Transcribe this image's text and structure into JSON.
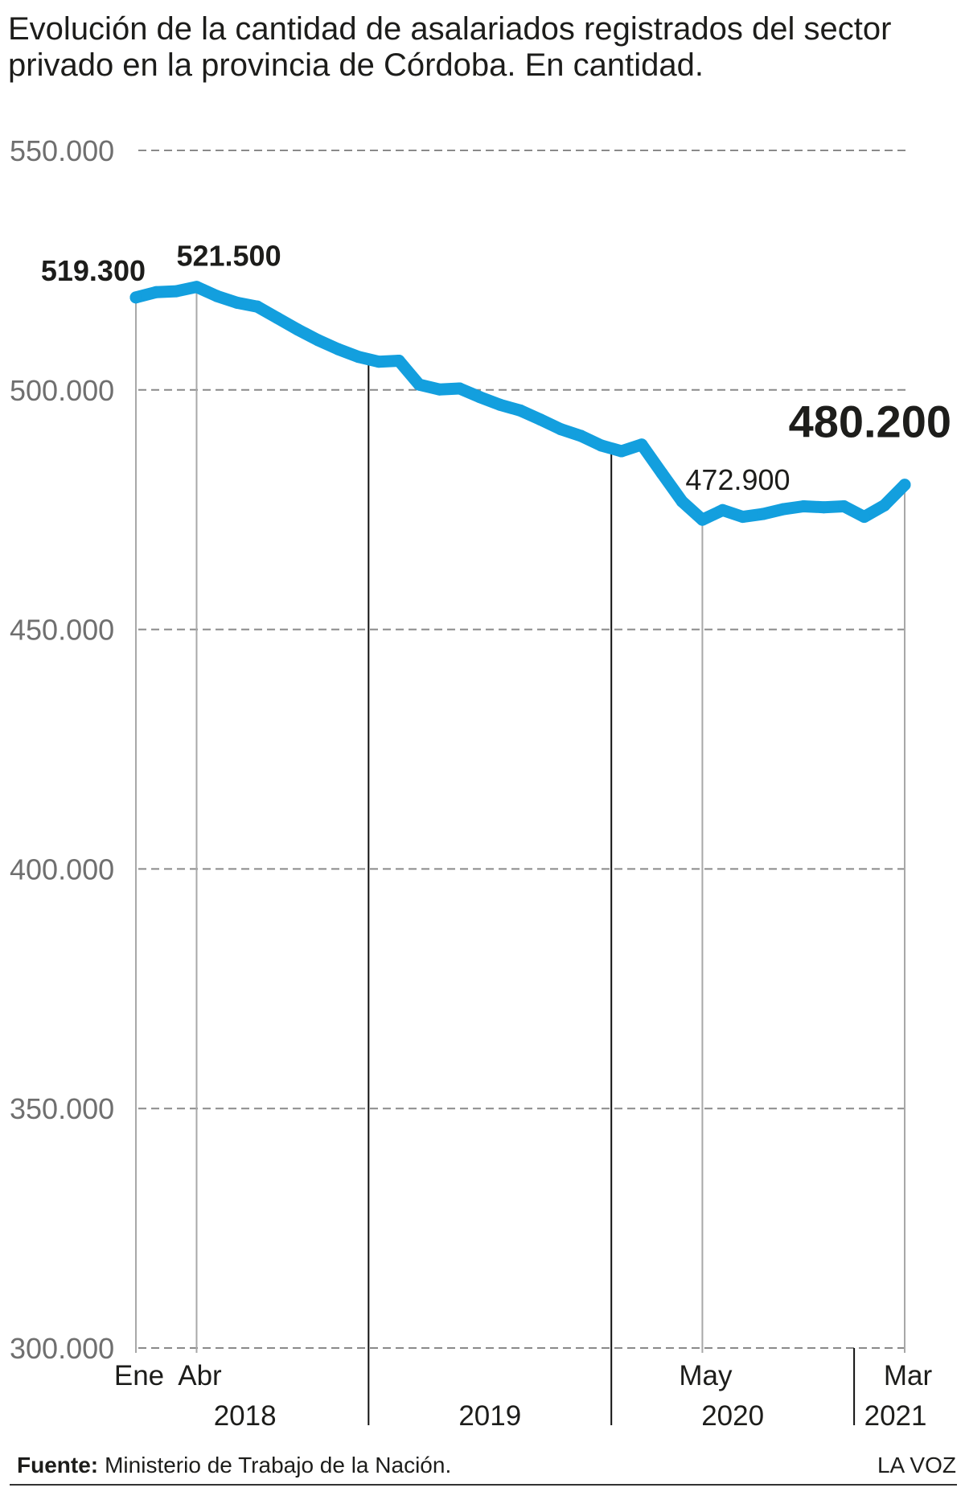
{
  "colors": {
    "line": "#139fde",
    "grid": "#8a8a8a",
    "guide": "#a8a8a8",
    "separator": "#111111",
    "text": "#1d1d1b",
    "axis_text": "#6f6f6f"
  },
  "footer": {
    "source_label": "Fuente:",
    "source_text": "Ministerio de Trabajo de la Nación.",
    "brand": "LA VOZ"
  },
  "chart_data": {
    "type": "line",
    "title": "Evolución de la cantidad de asalariados registrados del sector privado en la provincia de Córdoba. En cantidad.",
    "x": [
      "2018-01",
      "2018-02",
      "2018-03",
      "2018-04",
      "2018-05",
      "2018-06",
      "2018-07",
      "2018-08",
      "2018-09",
      "2018-10",
      "2018-11",
      "2018-12",
      "2019-01",
      "2019-02",
      "2019-03",
      "2019-04",
      "2019-05",
      "2019-06",
      "2019-07",
      "2019-08",
      "2019-09",
      "2019-10",
      "2019-11",
      "2019-12",
      "2020-01",
      "2020-02",
      "2020-03",
      "2020-04",
      "2020-05",
      "2020-06",
      "2020-07",
      "2020-08",
      "2020-09",
      "2020-10",
      "2020-11",
      "2020-12",
      "2021-01",
      "2021-02",
      "2021-03"
    ],
    "series": [
      {
        "values": [
          519300,
          520400,
          520600,
          521500,
          519600,
          518200,
          517400,
          515000,
          512600,
          510400,
          508500,
          506900,
          505900,
          506100,
          501100,
          500100,
          500300,
          498500,
          496900,
          495700,
          493800,
          491800,
          490400,
          488400,
          487200,
          488600,
          482600,
          476700,
          472900,
          474900,
          473500,
          474100,
          475100,
          475700,
          475500,
          475700,
          473500,
          475900,
          480200
        ]
      }
    ],
    "ylim": [
      300000,
      550000
    ],
    "y_tick_values": [
      550000,
      500000,
      450000,
      400000,
      350000,
      300000
    ],
    "y_ticks": [
      "550.000",
      "500.000",
      "450.000",
      "400.000",
      "350.000",
      "300.000"
    ],
    "x_ticks": [
      {
        "x": "2018-01",
        "label": "Ene"
      },
      {
        "x": "2018-04",
        "label": "Abr"
      },
      {
        "x": "2020-05",
        "label": "May"
      },
      {
        "x": "2021-03",
        "label": "Mar"
      }
    ],
    "year_labels": [
      "2018",
      "2019",
      "2020",
      "2021"
    ],
    "annotations": [
      {
        "x": "2018-01",
        "label": "519.300"
      },
      {
        "x": "2018-04",
        "label": "521.500"
      },
      {
        "x": "2020-05",
        "label": "472.900"
      },
      {
        "x": "2021-03",
        "label": "480.200"
      }
    ],
    "grid": "horizontal dashed",
    "legend": "none"
  }
}
